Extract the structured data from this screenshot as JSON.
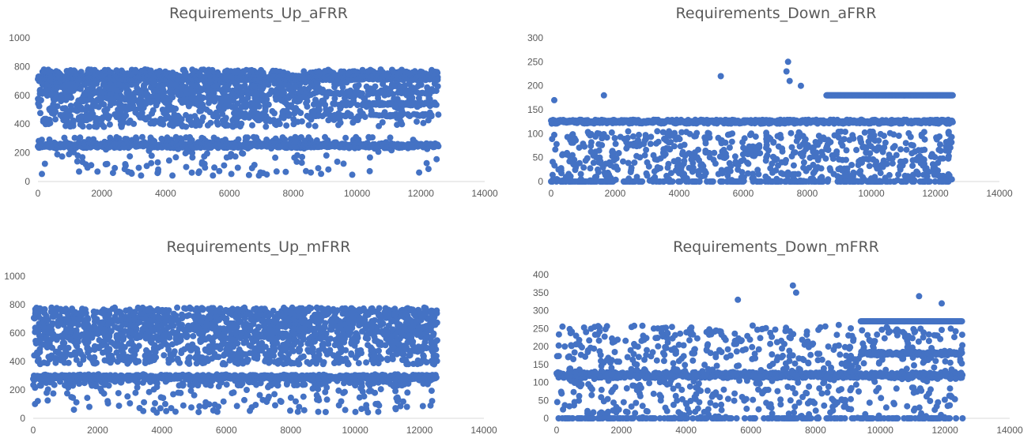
{
  "colors": {
    "marker": "#4472C4",
    "axis": "#d9d9d9",
    "text": "#595959"
  },
  "chart_data": [
    {
      "type": "scatter",
      "title": "Requirements_Up_aFRR",
      "xlim": [
        0,
        14000
      ],
      "ylim": [
        0,
        1000
      ],
      "xticks": [
        "0",
        "2000",
        "4000",
        "6000",
        "8000",
        "10000",
        "12000",
        "14000"
      ],
      "yticks": [
        "0",
        "200",
        "400",
        "600",
        "800",
        "1000"
      ],
      "xticks_val": [
        0,
        2000,
        4000,
        6000,
        8000,
        10000,
        12000,
        14000
      ],
      "yticks_val": [
        0,
        200,
        400,
        600,
        800,
        1000
      ],
      "grid": false,
      "series": [
        {
          "x_range": [
            0,
            12550
          ],
          "bands": [
            [
              240,
              270
            ],
            [
              380,
              720
            ],
            [
              450,
              480
            ],
            [
              540,
              560
            ],
            [
              600,
              640
            ],
            [
              680,
              760
            ]
          ],
          "points_summary": "dense cloud 50-780, strong bands near 250, 460, 540, 620, 720 after x=8600"
        }
      ]
    },
    {
      "type": "scatter",
      "title": "Requirements_Down_aFRR",
      "xlim": [
        0,
        14000
      ],
      "ylim": [
        0,
        300
      ],
      "xticks": [
        "0",
        "2000",
        "4000",
        "6000",
        "8000",
        "10000",
        "12000",
        "14000"
      ],
      "yticks": [
        "0",
        "50",
        "100",
        "150",
        "200",
        "250",
        "300"
      ],
      "xticks_val": [
        0,
        2000,
        4000,
        6000,
        8000,
        10000,
        12000,
        14000
      ],
      "yticks_val": [
        0,
        50,
        100,
        150,
        200,
        250,
        300
      ],
      "grid": false,
      "series": [
        {
          "x_range": [
            0,
            12550
          ],
          "bands": [
            [
              115,
              130
            ],
            [
              0,
              2
            ],
            [
              175,
              180
            ]
          ],
          "outliers": [
            [
              100,
              170
            ],
            [
              1650,
              180
            ],
            [
              5300,
              220
            ],
            [
              7400,
              250
            ],
            [
              7350,
              230
            ],
            [
              7800,
              200
            ],
            [
              7450,
              210
            ]
          ],
          "points_summary": "dense band ~120-130, scattered 0-100, band at 180 from x=8600"
        }
      ]
    },
    {
      "type": "scatter",
      "title": "Requirements_Up_mFRR",
      "xlim": [
        0,
        14000
      ],
      "ylim": [
        0,
        1000
      ],
      "xticks": [
        "0",
        "2000",
        "4000",
        "6000",
        "8000",
        "10000",
        "12000",
        "14000"
      ],
      "yticks": [
        "0",
        "200",
        "400",
        "600",
        "800",
        "1000"
      ],
      "xticks_val": [
        0,
        2000,
        4000,
        6000,
        8000,
        10000,
        12000,
        14000
      ],
      "yticks_val": [
        0,
        200,
        400,
        600,
        800,
        1000
      ],
      "grid": false,
      "series": [
        {
          "x_range": [
            0,
            12550
          ],
          "bands": [
            [
              250,
              320
            ],
            [
              560,
              800
            ]
          ],
          "points_summary": "dense cloud 50-830"
        }
      ]
    },
    {
      "type": "scatter",
      "title": "Requirements_Down_mFRR",
      "xlim": [
        0,
        14000
      ],
      "ylim": [
        0,
        400
      ],
      "xticks": [
        "0",
        "2000",
        "4000",
        "6000",
        "8000",
        "10000",
        "12000",
        "14000"
      ],
      "yticks": [
        "0",
        "50",
        "100",
        "150",
        "200",
        "250",
        "300",
        "350",
        "400"
      ],
      "xticks_val": [
        0,
        2000,
        4000,
        6000,
        8000,
        10000,
        12000,
        14000
      ],
      "yticks_val": [
        0,
        50,
        100,
        150,
        200,
        250,
        300,
        350,
        400
      ],
      "grid": false,
      "series": [
        {
          "x_range": [
            0,
            12550
          ],
          "bands": [
            [
              110,
              125
            ],
            [
              175,
              185
            ],
            [
              265,
              275
            ],
            [
              0,
              2
            ]
          ],
          "outliers": [
            [
              7300,
              370
            ],
            [
              7400,
              350
            ],
            [
              5600,
              330
            ],
            [
              11200,
              340
            ],
            [
              11900,
              320
            ]
          ],
          "points_summary": "dense band ~120, scattered 0-300, bands at 180 and 270 from x=9400"
        }
      ]
    }
  ]
}
